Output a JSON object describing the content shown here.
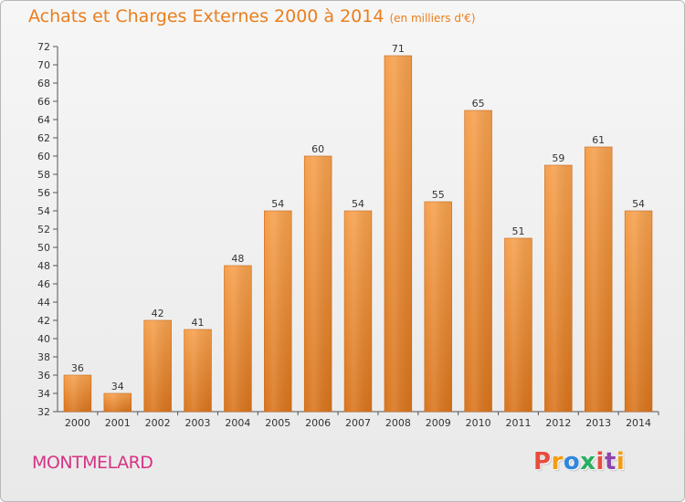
{
  "header": {
    "title": "Achats et Charges Externes 2000 à 2014",
    "subtitle": "(en milliers d'€)"
  },
  "footer": {
    "place": "MONTMELARD",
    "logo_text": "Proxiti",
    "logo_colors": [
      "#e84c3d",
      "#f39c12",
      "#2e86de",
      "#27ae60",
      "#e84c3d",
      "#8e44ad",
      "#f39c12"
    ]
  },
  "colors": {
    "bar_light": "#f6a04c",
    "bar_dark": "#d9741c",
    "accent": "#ea7e1c",
    "place_color": "#d63384"
  },
  "chart_data": {
    "type": "bar",
    "title": "Achats et Charges Externes 2000 à 2014",
    "subtitle": "(en milliers d'€)",
    "categories": [
      "2000",
      "2001",
      "2002",
      "2003",
      "2004",
      "2005",
      "2006",
      "2007",
      "2008",
      "2009",
      "2010",
      "2011",
      "2012",
      "2013",
      "2014"
    ],
    "values": [
      36,
      34,
      42,
      41,
      48,
      54,
      60,
      54,
      71,
      55,
      65,
      51,
      59,
      61,
      54
    ],
    "ylim": [
      32,
      72
    ],
    "yticks": [
      32,
      34,
      36,
      38,
      40,
      42,
      44,
      46,
      48,
      50,
      52,
      54,
      56,
      58,
      60,
      62,
      64,
      66,
      68,
      70,
      72
    ],
    "grid": false,
    "data_labels": true
  }
}
